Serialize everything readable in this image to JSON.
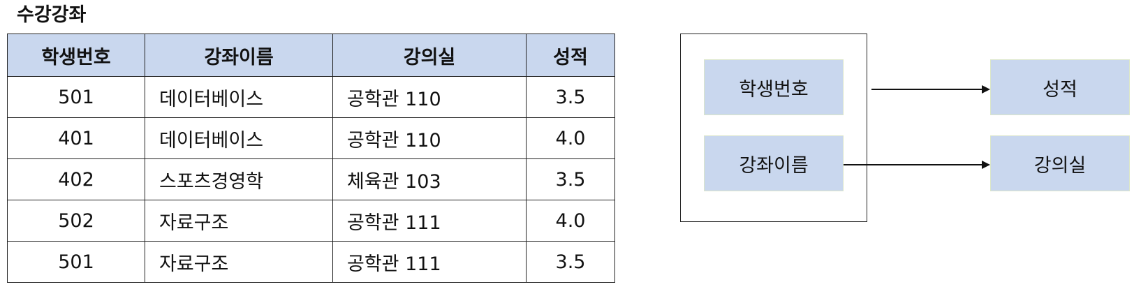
{
  "title": "수강강좌",
  "table": {
    "columns": [
      "학생번호",
      "강좌이름",
      "강의실",
      "성적"
    ],
    "rows": [
      [
        "501",
        "데이터베이스",
        "공학관 110",
        "3.5"
      ],
      [
        "401",
        "데이터베이스",
        "공학관 110",
        "4.0"
      ],
      [
        "402",
        "스포츠경영학",
        "체육관 103",
        "3.5"
      ],
      [
        "502",
        "자료구조",
        "공학관 111",
        "4.0"
      ],
      [
        "501",
        "자료구조",
        "공학관 111",
        "3.5"
      ]
    ]
  },
  "diagram": {
    "determinants": [
      "학생번호",
      "강좌이름"
    ],
    "dependents": [
      "성적",
      "강의실"
    ],
    "arrows": [
      {
        "from": "학생번호",
        "to": "성적"
      },
      {
        "from": "강좌이름",
        "to": "강의실"
      }
    ],
    "colors": {
      "attribute_fill": "#c9d7ee",
      "header_fill": "#c9d7ee",
      "line": "#111111"
    }
  }
}
